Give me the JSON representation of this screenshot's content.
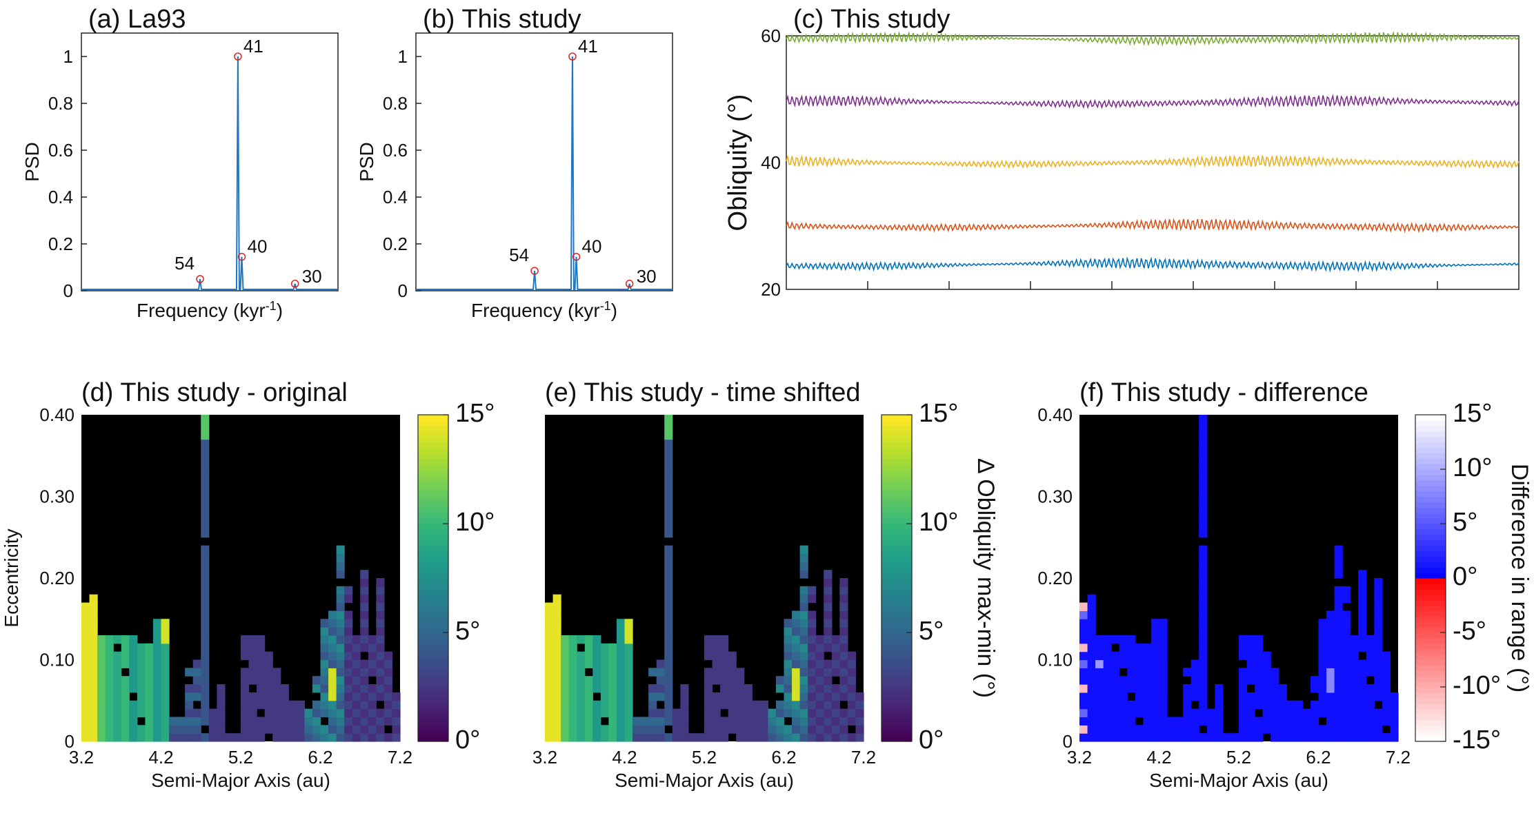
{
  "chart_data": [
    {
      "id": "a",
      "type": "line",
      "title": "(a) La93",
      "xlabel": "Frequency (kyr",
      "xlabel_sup": "-1",
      "xlabel_end": ")",
      "ylabel": "PSD",
      "ylim": [
        0,
        1.1
      ],
      "yticks": [
        "0",
        "0.2",
        "0.4",
        "0.6",
        "0.8",
        "1"
      ],
      "series_color": "#1f77c4",
      "peaks": [
        {
          "label": "54",
          "freq": 0.0185,
          "psd": 0.05
        },
        {
          "label": "41",
          "freq": 0.0244,
          "psd": 1.0
        },
        {
          "label": "40",
          "freq": 0.025,
          "psd": 0.145
        },
        {
          "label": "30",
          "freq": 0.0333,
          "psd": 0.03
        }
      ],
      "xlim": [
        0,
        0.04
      ]
    },
    {
      "id": "b",
      "type": "line",
      "title": "(b) This study",
      "xlabel": "Frequency (kyr",
      "xlabel_sup": "-1",
      "xlabel_end": ")",
      "ylabel": "PSD",
      "ylim": [
        0,
        1.1
      ],
      "yticks": [
        "0",
        "0.2",
        "0.4",
        "0.6",
        "0.8",
        "1"
      ],
      "series_color": "#1f77c4",
      "peaks": [
        {
          "label": "54",
          "freq": 0.0185,
          "psd": 0.085
        },
        {
          "label": "41",
          "freq": 0.0244,
          "psd": 1.0
        },
        {
          "label": "40",
          "freq": 0.025,
          "psd": 0.145
        },
        {
          "label": "30",
          "freq": 0.0333,
          "psd": 0.03
        }
      ],
      "xlim": [
        0,
        0.04
      ]
    },
    {
      "id": "c",
      "type": "line",
      "title": "(c) This study",
      "ylabel": "Obliquity (°)",
      "ylim": [
        20,
        60
      ],
      "yticks": [
        "20",
        "40",
        "60"
      ],
      "series": [
        {
          "name": "60",
          "mean": 59.5,
          "amp": 0.9,
          "color": "#77ac30"
        },
        {
          "name": "50",
          "mean": 49.5,
          "amp": 0.9,
          "color": "#7e2f8e"
        },
        {
          "name": "40",
          "mean": 40.0,
          "amp": 0.9,
          "color": "#edb120"
        },
        {
          "name": "30",
          "mean": 30.0,
          "amp": 0.9,
          "color": "#d95319"
        },
        {
          "name": "24",
          "mean": 23.9,
          "amp": 0.9,
          "color": "#0072bd"
        }
      ]
    },
    {
      "id": "d",
      "type": "heatmap",
      "title": "(d) This study - original",
      "xlabel": "Semi-Major Axis (au)",
      "ylabel": "Eccentricity",
      "xticks": [
        "3.2",
        "4.2",
        "5.2",
        "6.2",
        "7.2"
      ],
      "yticks": [
        "0",
        "0.10",
        "0.20",
        "0.30",
        "0.40"
      ],
      "xlim": [
        3.2,
        7.2
      ],
      "ylim": [
        0,
        0.4
      ],
      "colorbar": {
        "ticks": [
          "0°",
          "5°",
          "10°",
          "15°"
        ],
        "range": [
          0,
          15
        ],
        "label": ""
      }
    },
    {
      "id": "e",
      "type": "heatmap",
      "title": "(e) This study - time shifted",
      "xlabel": "Semi-Major Axis (au)",
      "ylabel": "",
      "xticks": [
        "3.2",
        "4.2",
        "5.2",
        "6.2",
        "7.2"
      ],
      "yticks": [],
      "xlim": [
        3.2,
        7.2
      ],
      "ylim": [
        0,
        0.4
      ],
      "colorbar": {
        "ticks": [
          "0°",
          "5°",
          "10°",
          "15°"
        ],
        "range": [
          0,
          15
        ],
        "label": "Δ Obliquity max-min (°)"
      }
    },
    {
      "id": "f",
      "type": "heatmap",
      "title": "(f) This study - difference",
      "xlabel": "Semi-Major Axis (au)",
      "ylabel": "",
      "xticks": [
        "3.2",
        "4.2",
        "5.2",
        "6.2",
        "7.2"
      ],
      "yticks": [
        "0",
        "0.10",
        "0.20",
        "0.30",
        "0.40"
      ],
      "xlim": [
        3.2,
        7.2
      ],
      "ylim": [
        0,
        0.4
      ],
      "colorbar": {
        "ticks": [
          "-15°",
          "-10°",
          "-5°",
          "0°",
          "5°",
          "10°",
          "15°"
        ],
        "range": [
          -15,
          15
        ],
        "label": "Difference in range (°)"
      }
    }
  ]
}
